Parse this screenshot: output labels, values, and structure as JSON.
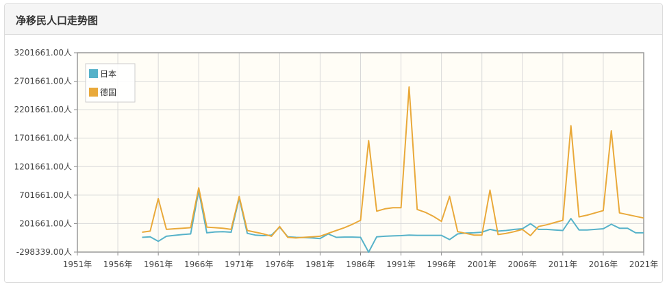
{
  "panel": {
    "title": "净移民人口走势图"
  },
  "colors": {
    "japan": "#56b2c9",
    "germany": "#e9a93a",
    "plot_bg": "#fffdf6",
    "grid": "#d8d8d8"
  },
  "chart_data": {
    "type": "line",
    "title": "净移民人口走势图",
    "x_ticks": [
      "1951年",
      "1956年",
      "1961年",
      "1966年",
      "1971年",
      "1976年",
      "1981年",
      "1986年",
      "1991年",
      "1996年",
      "2001年",
      "2006年",
      "2011年",
      "2016年",
      "2021年"
    ],
    "y_ticks": [
      "-298339.00人",
      "201661.00人",
      "701661.00人",
      "1201661.00人",
      "1701661.00人",
      "2201661.00人",
      "2701661.00人",
      "3201661.00人"
    ],
    "xlim": [
      1951,
      2021
    ],
    "ylim": [
      -298339,
      3201661
    ],
    "grid": true,
    "legend_position": "top-left",
    "x": [
      1959,
      1960,
      1961,
      1962,
      1963,
      1964,
      1965,
      1966,
      1967,
      1968,
      1969,
      1970,
      1971,
      1972,
      1973,
      1974,
      1975,
      1976,
      1977,
      1978,
      1979,
      1980,
      1981,
      1982,
      1983,
      1984,
      1985,
      1986,
      1987,
      1988,
      1989,
      1990,
      1991,
      1992,
      1993,
      1994,
      1995,
      1996,
      1997,
      1998,
      1999,
      2000,
      2001,
      2002,
      2003,
      2004,
      2005,
      2006,
      2007,
      2008,
      2009,
      2010,
      2011,
      2012,
      2013,
      2014,
      2015,
      2016,
      2017,
      2018,
      2019,
      2020,
      2021
    ],
    "series": [
      {
        "name": "日本",
        "values": [
          -40000,
          -30000,
          -110000,
          -20000,
          -5000,
          10000,
          20000,
          780000,
          40000,
          55000,
          60000,
          50000,
          650000,
          30000,
          0,
          -10000,
          0,
          140000,
          -30000,
          -40000,
          -45000,
          -50000,
          -60000,
          20000,
          -40000,
          -35000,
          -35000,
          -40000,
          -300000,
          -30000,
          -20000,
          -15000,
          -10000,
          0,
          -5000,
          -5000,
          -5000,
          -5000,
          -80000,
          20000,
          35000,
          40000,
          50000,
          100000,
          70000,
          80000,
          100000,
          110000,
          200000,
          100000,
          100000,
          90000,
          80000,
          290000,
          90000,
          90000,
          100000,
          110000,
          190000,
          120000,
          120000,
          40000,
          40000
        ]
      },
      {
        "name": "德国",
        "values": [
          50000,
          70000,
          640000,
          100000,
          110000,
          120000,
          130000,
          830000,
          140000,
          130000,
          120000,
          100000,
          680000,
          80000,
          50000,
          20000,
          -20000,
          150000,
          -40000,
          -50000,
          -40000,
          -30000,
          -20000,
          30000,
          80000,
          130000,
          190000,
          260000,
          1660000,
          420000,
          460000,
          480000,
          480000,
          2600000,
          450000,
          400000,
          330000,
          240000,
          680000,
          60000,
          30000,
          0,
          0,
          790000,
          10000,
          30000,
          60000,
          100000,
          -10000,
          150000,
          180000,
          220000,
          260000,
          1920000,
          320000,
          350000,
          390000,
          430000,
          1830000,
          390000,
          360000,
          330000,
          300000
        ]
      }
    ]
  }
}
